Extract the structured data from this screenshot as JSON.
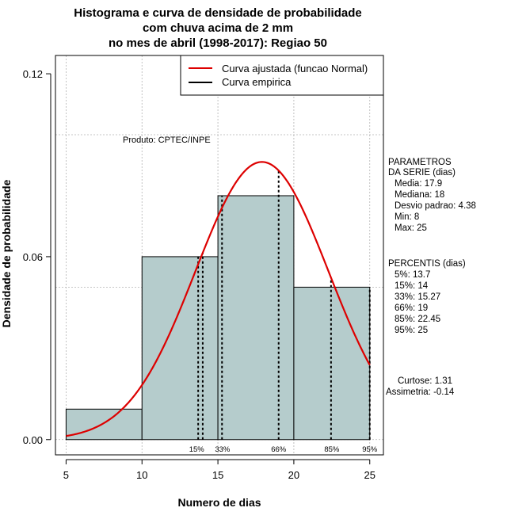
{
  "chart_data": {
    "type": "histogram",
    "title_lines": [
      "Histograma e curva de densidade de probabilidade",
      "com chuva acima de 2 mm",
      "no mes de abril (1998-2017): Regiao 50"
    ],
    "xlabel": "Numero de dias",
    "ylabel": "Densidade de probabilidade",
    "xlim": [
      4.3,
      25.9
    ],
    "ylim": [
      -0.005,
      0.126
    ],
    "x_ticks": [
      5,
      10,
      15,
      20,
      25
    ],
    "x_tick_labels": [
      "5",
      "10",
      "15",
      "20",
      "25"
    ],
    "y_ticks": [
      0.0,
      0.06,
      0.12
    ],
    "y_tick_labels": [
      "0.00",
      "0.06",
      "0.12"
    ],
    "grid": true,
    "grid_x": [
      5,
      10,
      15,
      20,
      25
    ],
    "grid_y": [
      0.0,
      0.05,
      0.1
    ],
    "bars": [
      {
        "x0": 5,
        "x1": 10,
        "density": 0.01
      },
      {
        "x0": 10,
        "x1": 15,
        "density": 0.06
      },
      {
        "x0": 15,
        "x1": 20,
        "density": 0.08
      },
      {
        "x0": 20,
        "x1": 25,
        "density": 0.05
      }
    ],
    "bar_color": "#b5cccc",
    "normal_fit": {
      "mean": 17.9,
      "sd": 4.38,
      "x_from": 5,
      "x_to": 25,
      "color": "#dd0000"
    },
    "percentile_lines": [
      {
        "x": 13.7,
        "label": "5%"
      },
      {
        "x": 14,
        "label": "15%"
      },
      {
        "x": 15.27,
        "label": "33%"
      },
      {
        "x": 19,
        "label": "66%"
      },
      {
        "x": 22.45,
        "label": "85%"
      },
      {
        "x": 25,
        "label": "95%"
      }
    ],
    "percentile_label_text": [
      "15%",
      "33%",
      "66%",
      "85%",
      "95%"
    ],
    "percentile_label_x": [
      13.6,
      15.3,
      19,
      22.5,
      25
    ],
    "legend_position": "top-right",
    "legend": [
      {
        "label": "Curva ajustada (funcao Normal)",
        "color": "#dd0000"
      },
      {
        "label": "Curva empirica",
        "color": "#000000"
      }
    ],
    "annotation": "Produto: CPTEC/INPE"
  },
  "side_panel": {
    "params_lines": [
      "PARAMETROS",
      "DA SERIE (dias)",
      "Media: 17.9",
      "Mediana: 18",
      "Desvio padrao: 4.38",
      "Min: 8",
      "Max: 25"
    ],
    "percentis_lines": [
      "PERCENTIS (dias)",
      "5%: 13.7",
      "15%: 14",
      "33%: 15.27",
      "66%: 19",
      "85%: 22.45",
      "95%: 25"
    ],
    "stats_lines": [
      "Curtose: 1.31",
      "Assimetria: -0.14"
    ]
  }
}
